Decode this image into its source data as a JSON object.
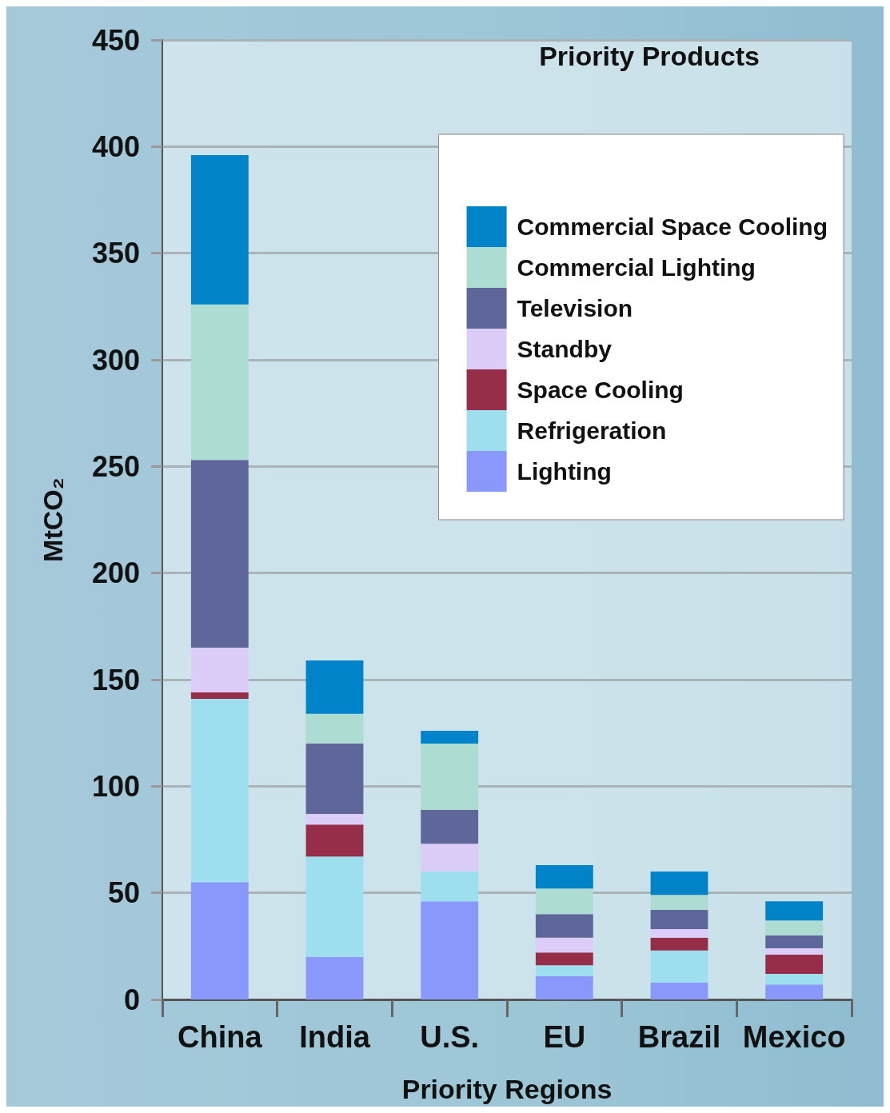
{
  "chart_data": {
    "type": "bar",
    "stacked": true,
    "xlabel": "Priority Regions",
    "ylabel": "MtCO₂",
    "legend_title": "Priority Products",
    "legend": "top right",
    "grid": "y",
    "categories": [
      "China",
      "India",
      "U.S.",
      "EU",
      "Brazil",
      "Mexico"
    ],
    "ylim": [
      0,
      450
    ],
    "yticks": [
      0,
      50,
      100,
      150,
      200,
      250,
      300,
      350,
      400,
      450
    ],
    "series": [
      {
        "name": "Lighting",
        "color": "#8b98fb",
        "values": [
          55,
          20,
          46,
          11,
          8,
          7
        ]
      },
      {
        "name": "Refrigeration",
        "color": "#9ddfee",
        "values": [
          86,
          47,
          14,
          5,
          15,
          5
        ]
      },
      {
        "name": "Space Cooling",
        "color": "#962e4a",
        "values": [
          3,
          15,
          0,
          6,
          6,
          9
        ]
      },
      {
        "name": "Standby",
        "color": "#dccdf8",
        "values": [
          21,
          5,
          13,
          7,
          4,
          3
        ]
      },
      {
        "name": "Television",
        "color": "#5f6699",
        "values": [
          88,
          33,
          16,
          11,
          9,
          6
        ]
      },
      {
        "name": "Commercial Lighting",
        "color": "#acdcd2",
        "values": [
          73,
          14,
          31,
          12,
          7,
          7
        ]
      },
      {
        "name": "Commercial Space Cooling",
        "color": "#0083c8",
        "values": [
          70,
          25,
          6,
          11,
          11,
          9
        ]
      }
    ]
  }
}
